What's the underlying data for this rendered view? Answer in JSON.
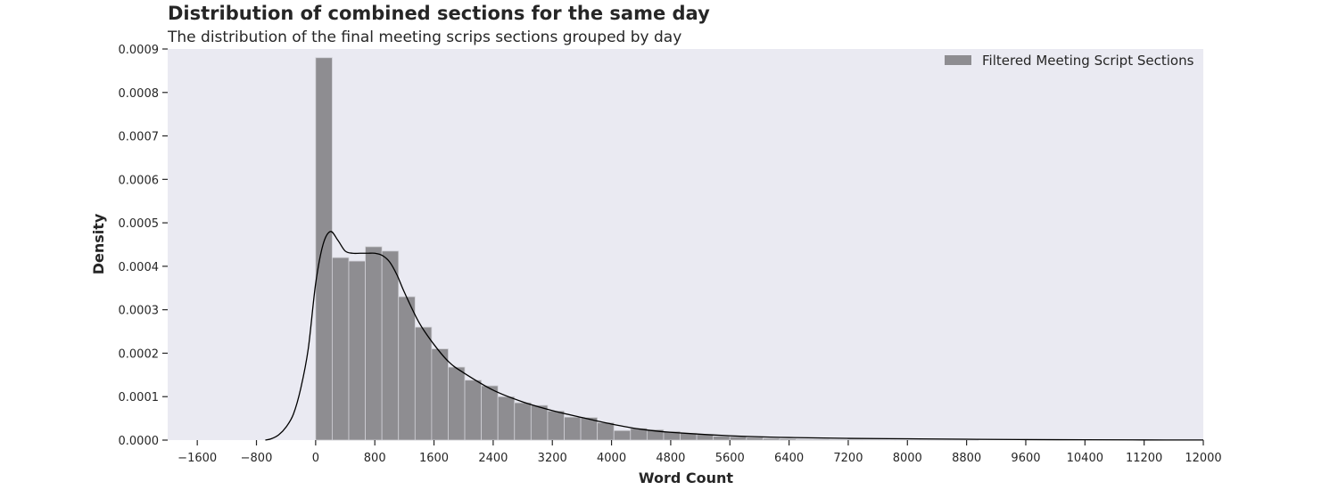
{
  "chart_data": {
    "type": "bar",
    "title": "Distribution of combined sections for the same day",
    "subtitle": "The distribution of the final meeting scrips sections grouped by day",
    "xlabel": "Word Count",
    "ylabel": "Density",
    "xlim": [
      -2000,
      12000
    ],
    "ylim": [
      0,
      0.0009
    ],
    "grid": false,
    "legend_position": "top-right",
    "x_ticks": [
      -1600,
      -800,
      0,
      800,
      1600,
      2400,
      3200,
      4000,
      4800,
      5600,
      6400,
      7200,
      8000,
      8800,
      9600,
      10400,
      11200,
      12000
    ],
    "x_tick_labels": [
      "−1600",
      "−800",
      "0",
      "800",
      "1600",
      "2400",
      "3200",
      "4000",
      "4800",
      "5600",
      "6400",
      "7200",
      "8000",
      "8800",
      "9600",
      "10400",
      "11200",
      "12000"
    ],
    "y_ticks": [
      0,
      0.0001,
      0.0002,
      0.0003,
      0.0004,
      0.0005,
      0.0006,
      0.0007,
      0.0008,
      0.0009
    ],
    "y_tick_labels": [
      "0.0000",
      "0.0001",
      "0.0002",
      "0.0003",
      "0.0004",
      "0.0005",
      "0.0006",
      "0.0007",
      "0.0008",
      "0.0009"
    ],
    "histogram": {
      "name": "Filtered Meeting Script Sections",
      "color": "#8e8d91",
      "edge_color": "#d0d0d6",
      "bin_start": 0,
      "bin_width": 224,
      "values": [
        0.00088,
        0.00042,
        0.000412,
        0.000445,
        0.000435,
        0.00033,
        0.00026,
        0.00021,
        0.000168,
        0.000138,
        0.000125,
        0.0001,
        8.6e-05,
        8e-05,
        6.7e-05,
        5.3e-05,
        5.2e-05,
        4e-05,
        2.2e-05,
        2.7e-05,
        2.4e-05,
        2e-05,
        1.6e-05,
        1.3e-05,
        9e-06,
        8e-06,
        6e-06,
        4e-06,
        3e-06,
        2e-06,
        2e-06,
        1.5e-06,
        1.2e-06,
        1e-06,
        8e-07,
        6e-07,
        5e-07,
        4e-07,
        4e-07,
        3e-07
      ]
    },
    "kde": {
      "color": "#000000",
      "x": [
        -680,
        -600,
        -500,
        -400,
        -300,
        -200,
        -100,
        0,
        100,
        200,
        300,
        400,
        500,
        600,
        700,
        800,
        900,
        1000,
        1100,
        1200,
        1400,
        1600,
        1800,
        2000,
        2400,
        2800,
        3200,
        3600,
        4000,
        4400,
        4800,
        5600,
        6400,
        7200,
        8000,
        8800,
        9600,
        10400,
        11200,
        12000
      ],
      "y": [
        0,
        3e-06,
        1.2e-05,
        3e-05,
        6e-05,
        0.00012,
        0.00021,
        0.00036,
        0.00045,
        0.00048,
        0.00046,
        0.000435,
        0.00043,
        0.00043,
        0.00043,
        0.00043,
        0.000425,
        0.00041,
        0.00038,
        0.00034,
        0.00027,
        0.00022,
        0.00018,
        0.000155,
        0.000115,
        8.8e-05,
        6.8e-05,
        5.2e-05,
        3.7e-05,
        2.5e-05,
        1.8e-05,
        1e-05,
        6e-06,
        4e-06,
        3e-06,
        2e-06,
        1.2e-06,
        7e-07,
        4e-07,
        2e-07
      ]
    },
    "background": "#eaeaf2"
  }
}
